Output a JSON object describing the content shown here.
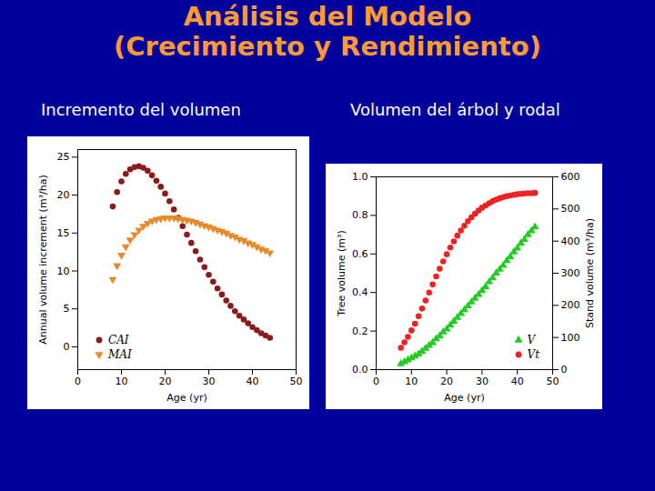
{
  "slide": {
    "title": [
      "Análisis del Modelo",
      "(Crecimiento y Rendimiento)"
    ]
  },
  "chart_data": [
    {
      "type": "scatter",
      "title": "Incremento del volumen",
      "xlabel": "Age (yr)",
      "ylabel": "Annual volume increment (m³/ha)",
      "xlim": [
        0,
        50
      ],
      "xticks": [
        0,
        10,
        20,
        30,
        40,
        50
      ],
      "ylim": [
        -3,
        26
      ],
      "yticks": [
        0,
        5,
        10,
        15,
        20,
        25
      ],
      "grid": false,
      "legend": "bottom-left",
      "x": [
        8,
        9,
        10,
        11,
        12,
        13,
        14,
        15,
        16,
        17,
        18,
        19,
        20,
        21,
        22,
        23,
        24,
        25,
        26,
        27,
        28,
        29,
        30,
        31,
        32,
        33,
        34,
        35,
        36,
        37,
        38,
        39,
        40,
        41,
        42,
        43,
        44
      ],
      "series": [
        {
          "name": "CAI",
          "color": "#8B1A1A",
          "marker": "circle",
          "values": [
            18.5,
            20.4,
            21.8,
            22.8,
            23.4,
            23.7,
            23.8,
            23.6,
            23.2,
            22.6,
            21.9,
            21.1,
            20.2,
            19.2,
            18.1,
            17.0,
            15.9,
            14.8,
            13.7,
            12.6,
            11.5,
            10.5,
            9.5,
            8.6,
            7.7,
            6.9,
            6.1,
            5.4,
            4.7,
            4.1,
            3.6,
            3.1,
            2.6,
            2.2,
            1.8,
            1.5,
            1.2
          ]
        },
        {
          "name": "MAI",
          "color": "#E8892A",
          "marker": "triangle-down",
          "values": [
            8.9,
            10.7,
            12.1,
            13.2,
            14.1,
            14.8,
            15.4,
            15.9,
            16.3,
            16.6,
            16.8,
            16.9,
            17.0,
            17.0,
            17.0,
            16.9,
            16.8,
            16.7,
            16.6,
            16.4,
            16.2,
            16.0,
            15.8,
            15.6,
            15.4,
            15.2,
            15.0,
            14.7,
            14.5,
            14.2,
            14.0,
            13.7,
            13.5,
            13.2,
            12.9,
            12.7,
            12.4
          ]
        }
      ]
    },
    {
      "type": "scatter",
      "title": "Volumen del árbol y rodal",
      "xlabel": "Age (yr)",
      "ylabel": "Tree volume (m³)",
      "y2label": "Stand volume (m³/ha)",
      "xlim": [
        0,
        50
      ],
      "xticks": [
        0,
        10,
        20,
        30,
        40,
        50
      ],
      "ylim": [
        0,
        1
      ],
      "yticks": [
        {
          "value": 0,
          "label": "0.0"
        },
        {
          "value": 0.2,
          "label": "0.2"
        },
        {
          "value": 0.4,
          "label": "0.4"
        },
        {
          "value": 0.6,
          "label": "0.6"
        },
        {
          "value": 0.8,
          "label": "0.8"
        },
        {
          "value": 1,
          "label": "1.0"
        }
      ],
      "y2lim": [
        0,
        600
      ],
      "y2ticks": [
        0,
        100,
        200,
        300,
        400,
        500,
        600
      ],
      "grid": false,
      "legend": "bottom-right",
      "x": [
        7,
        8,
        9,
        10,
        11,
        12,
        13,
        14,
        15,
        16,
        17,
        18,
        19,
        20,
        21,
        22,
        23,
        24,
        25,
        26,
        27,
        28,
        29,
        30,
        31,
        32,
        33,
        34,
        35,
        36,
        37,
        38,
        39,
        40,
        41,
        42,
        43,
        44,
        45
      ],
      "series": [
        {
          "name": "V",
          "color": "#22CC22",
          "marker": "triangle",
          "values": [
            0.03,
            0.04,
            0.05,
            0.06,
            0.07,
            0.08,
            0.095,
            0.11,
            0.125,
            0.14,
            0.16,
            0.175,
            0.195,
            0.21,
            0.23,
            0.25,
            0.27,
            0.29,
            0.31,
            0.33,
            0.35,
            0.37,
            0.39,
            0.41,
            0.43,
            0.455,
            0.475,
            0.5,
            0.52,
            0.54,
            0.565,
            0.585,
            0.61,
            0.63,
            0.655,
            0.675,
            0.7,
            0.72,
            0.74
          ]
        },
        {
          "name": "Vt",
          "color": "#EE2222",
          "marker": "circle",
          "axis": "y2",
          "values": [
            68,
            85,
            102,
            122,
            143,
            166,
            190,
            215,
            240,
            265,
            290,
            314,
            337,
            359,
            380,
            399,
            417,
            433,
            448,
            462,
            474,
            485,
            495,
            504,
            511,
            518,
            524,
            529,
            533,
            537,
            540,
            542,
            544,
            546,
            547,
            548,
            549,
            549,
            550
          ]
        }
      ]
    }
  ]
}
